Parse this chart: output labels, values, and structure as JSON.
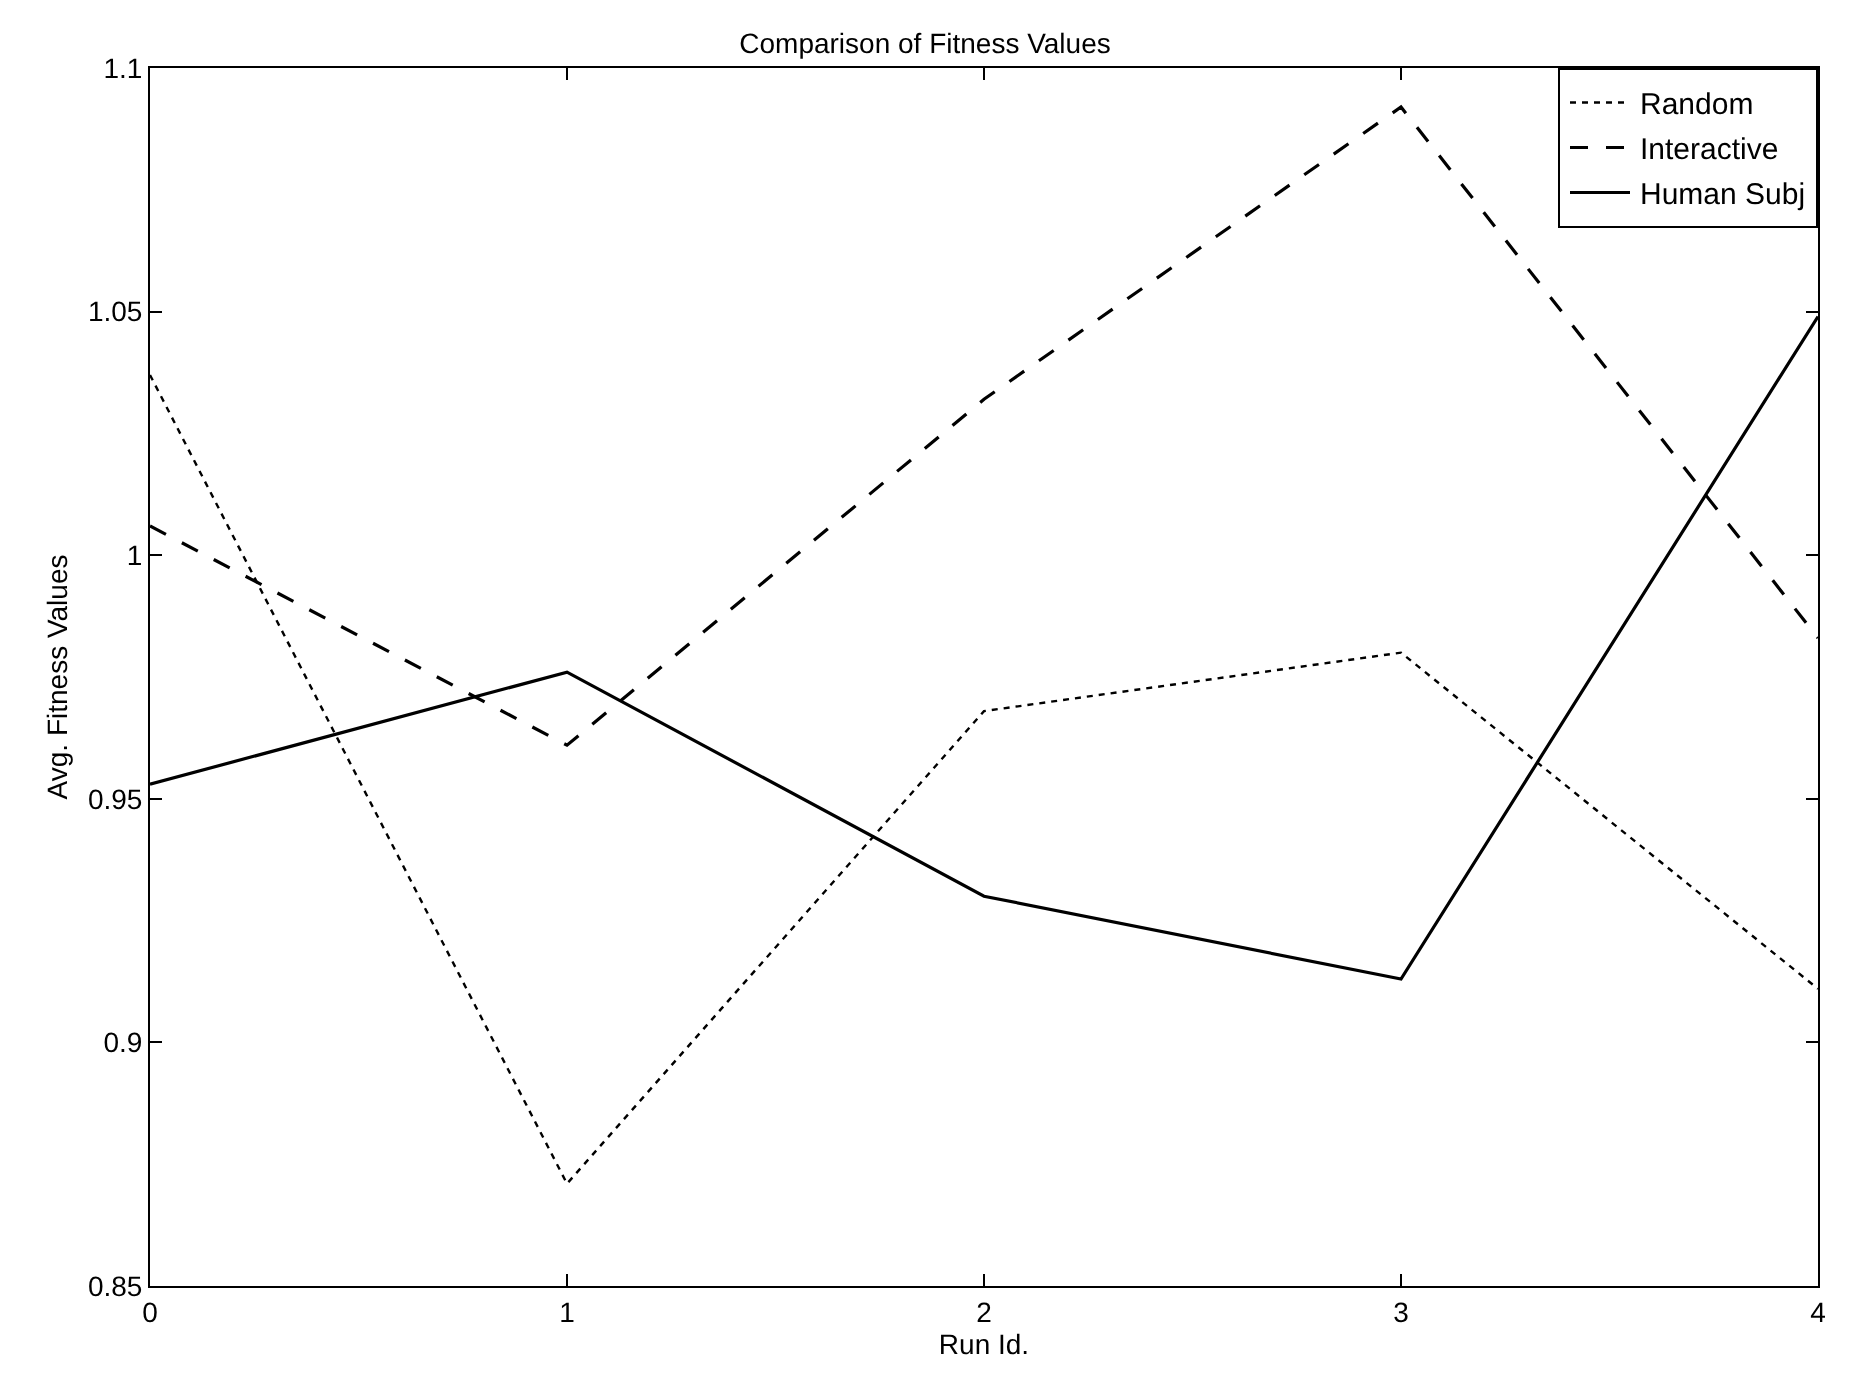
{
  "chart_data": {
    "type": "line",
    "title": "Comparison of Fitness Values",
    "xlabel": "Run Id.",
    "ylabel": "Avg. Fitness Values",
    "x": [
      0,
      1,
      2,
      3,
      4
    ],
    "series": [
      {
        "name": "Random",
        "color": "#000000",
        "line_style": "dotted",
        "values": [
          1.037,
          0.871,
          0.968,
          0.98,
          0.911
        ]
      },
      {
        "name": "Interactive",
        "color": "#000000",
        "line_style": "dashed",
        "values": [
          1.006,
          0.961,
          1.032,
          1.092,
          0.983
        ]
      },
      {
        "name": "Human Subj",
        "color": "#000000",
        "line_style": "solid",
        "values": [
          0.953,
          0.976,
          0.93,
          0.913,
          1.049
        ]
      }
    ],
    "xlim": [
      0,
      4
    ],
    "xticks": [
      0,
      1,
      2,
      3,
      4
    ],
    "ylim": [
      0.85,
      1.1
    ],
    "yticks": [
      0.85,
      0.9,
      0.95,
      1,
      1.05,
      1.1
    ],
    "legend": "top right",
    "marker": "none"
  }
}
